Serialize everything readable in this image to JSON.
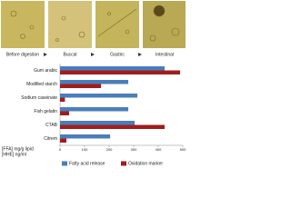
{
  "stages": [
    "Before digestion",
    "Buccal",
    "Gastric",
    "Intestinal"
  ],
  "chart_data": {
    "type": "hbar",
    "categories": [
      "Gum arabic",
      "Modified starch",
      "Sodium caseinate",
      "Fish gelatin",
      "CTAB",
      "Citrem"
    ],
    "series": [
      {
        "name": "Fatty acid release",
        "color": "#4a7ebb",
        "values": [
          426,
          278,
          315,
          278,
          304,
          204
        ]
      },
      {
        "name": "Oxidation marker",
        "color": "#a11d1d",
        "values": [
          489,
          167,
          20,
          37,
          426,
          26
        ]
      }
    ],
    "xlim": [
      0,
      500
    ],
    "xticks": [
      0,
      100,
      200,
      300,
      400,
      500
    ],
    "x_labels": [
      "[FFA] mg/g lipid",
      "[HHE] ng/ml"
    ],
    "legend": "bottom"
  }
}
